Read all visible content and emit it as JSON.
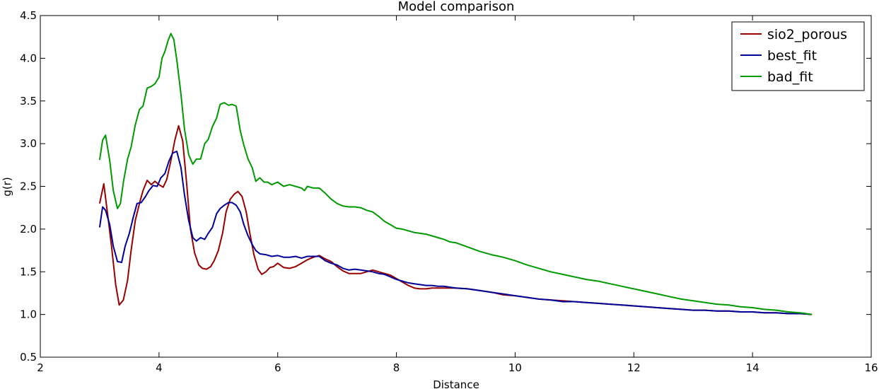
{
  "chart_data": {
    "type": "line",
    "title": "Model comparison",
    "xlabel": "Distance",
    "ylabel": "g(r)",
    "xlim": [
      2,
      16
    ],
    "ylim": [
      0.5,
      4.5
    ],
    "xticks": [
      2,
      4,
      6,
      8,
      10,
      12,
      14,
      16
    ],
    "xtick_labels": [
      "2",
      "4",
      "6",
      "8",
      "10",
      "12",
      "14",
      "16"
    ],
    "yticks": [
      0.5,
      1.0,
      1.5,
      2.0,
      2.5,
      3.0,
      3.5,
      4.0,
      4.5
    ],
    "ytick_labels": [
      "0.5",
      "1.0",
      "1.5",
      "2.0",
      "2.5",
      "3.0",
      "3.5",
      "4.0",
      "4.5"
    ],
    "grid": false,
    "legend_position": "top-right",
    "series": [
      {
        "name": "sio2_porous",
        "color": "#990000",
        "points": [
          [
            3.0,
            2.3
          ],
          [
            3.07,
            2.53
          ],
          [
            3.13,
            2.2
          ],
          [
            3.2,
            1.8
          ],
          [
            3.27,
            1.35
          ],
          [
            3.33,
            1.11
          ],
          [
            3.4,
            1.17
          ],
          [
            3.47,
            1.4
          ],
          [
            3.53,
            1.75
          ],
          [
            3.6,
            2.1
          ],
          [
            3.67,
            2.3
          ],
          [
            3.73,
            2.45
          ],
          [
            3.8,
            2.57
          ],
          [
            3.87,
            2.52
          ],
          [
            3.93,
            2.56
          ],
          [
            4.0,
            2.52
          ],
          [
            4.07,
            2.49
          ],
          [
            4.13,
            2.58
          ],
          [
            4.2,
            2.8
          ],
          [
            4.27,
            3.05
          ],
          [
            4.33,
            3.21
          ],
          [
            4.4,
            3.03
          ],
          [
            4.47,
            2.5
          ],
          [
            4.53,
            2.0
          ],
          [
            4.6,
            1.72
          ],
          [
            4.67,
            1.58
          ],
          [
            4.73,
            1.54
          ],
          [
            4.8,
            1.53
          ],
          [
            4.87,
            1.56
          ],
          [
            4.93,
            1.63
          ],
          [
            5.0,
            1.75
          ],
          [
            5.07,
            1.95
          ],
          [
            5.13,
            2.2
          ],
          [
            5.2,
            2.35
          ],
          [
            5.27,
            2.41
          ],
          [
            5.33,
            2.44
          ],
          [
            5.4,
            2.38
          ],
          [
            5.47,
            2.2
          ],
          [
            5.53,
            1.95
          ],
          [
            5.6,
            1.7
          ],
          [
            5.67,
            1.53
          ],
          [
            5.73,
            1.47
          ],
          [
            5.8,
            1.5
          ],
          [
            5.87,
            1.55
          ],
          [
            5.93,
            1.56
          ],
          [
            6.0,
            1.6
          ],
          [
            6.1,
            1.55
          ],
          [
            6.2,
            1.54
          ],
          [
            6.3,
            1.56
          ],
          [
            6.4,
            1.6
          ],
          [
            6.5,
            1.64
          ],
          [
            6.6,
            1.67
          ],
          [
            6.7,
            1.69
          ],
          [
            6.8,
            1.65
          ],
          [
            6.9,
            1.62
          ],
          [
            7.0,
            1.56
          ],
          [
            7.1,
            1.51
          ],
          [
            7.2,
            1.48
          ],
          [
            7.3,
            1.48
          ],
          [
            7.4,
            1.48
          ],
          [
            7.5,
            1.5
          ],
          [
            7.6,
            1.52
          ],
          [
            7.7,
            1.5
          ],
          [
            7.8,
            1.48
          ],
          [
            7.9,
            1.46
          ],
          [
            8.0,
            1.42
          ],
          [
            8.1,
            1.38
          ],
          [
            8.2,
            1.34
          ],
          [
            8.3,
            1.31
          ],
          [
            8.4,
            1.3
          ],
          [
            8.5,
            1.3
          ],
          [
            8.6,
            1.31
          ],
          [
            8.7,
            1.31
          ],
          [
            8.8,
            1.31
          ],
          [
            9.0,
            1.31
          ],
          [
            9.2,
            1.3
          ],
          [
            9.4,
            1.28
          ],
          [
            9.6,
            1.26
          ],
          [
            9.8,
            1.23
          ],
          [
            10.0,
            1.22
          ],
          [
            10.2,
            1.2
          ],
          [
            10.4,
            1.18
          ],
          [
            10.6,
            1.17
          ],
          [
            10.8,
            1.16
          ],
          [
            11.0,
            1.15
          ],
          [
            11.2,
            1.14
          ],
          [
            11.4,
            1.13
          ],
          [
            11.6,
            1.12
          ],
          [
            11.8,
            1.11
          ],
          [
            12.0,
            1.1
          ],
          [
            12.2,
            1.09
          ],
          [
            12.4,
            1.08
          ],
          [
            12.6,
            1.07
          ],
          [
            12.8,
            1.06
          ],
          [
            13.0,
            1.05
          ],
          [
            13.2,
            1.05
          ],
          [
            13.4,
            1.04
          ],
          [
            13.6,
            1.04
          ],
          [
            13.8,
            1.03
          ],
          [
            14.0,
            1.03
          ],
          [
            14.2,
            1.02
          ],
          [
            14.4,
            1.02
          ],
          [
            14.6,
            1.01
          ],
          [
            14.8,
            1.01
          ],
          [
            15.0,
            1.0
          ]
        ]
      },
      {
        "name": "best_fit",
        "color": "#000099",
        "points": [
          [
            3.0,
            2.02
          ],
          [
            3.05,
            2.26
          ],
          [
            3.1,
            2.22
          ],
          [
            3.17,
            2.05
          ],
          [
            3.23,
            1.8
          ],
          [
            3.3,
            1.62
          ],
          [
            3.37,
            1.61
          ],
          [
            3.43,
            1.8
          ],
          [
            3.5,
            1.95
          ],
          [
            3.57,
            2.15
          ],
          [
            3.63,
            2.3
          ],
          [
            3.7,
            2.31
          ],
          [
            3.77,
            2.38
          ],
          [
            3.83,
            2.45
          ],
          [
            3.9,
            2.51
          ],
          [
            3.97,
            2.5
          ],
          [
            4.03,
            2.6
          ],
          [
            4.1,
            2.65
          ],
          [
            4.17,
            2.8
          ],
          [
            4.23,
            2.89
          ],
          [
            4.3,
            2.91
          ],
          [
            4.37,
            2.72
          ],
          [
            4.43,
            2.4
          ],
          [
            4.5,
            2.1
          ],
          [
            4.57,
            1.9
          ],
          [
            4.63,
            1.86
          ],
          [
            4.7,
            1.9
          ],
          [
            4.77,
            1.88
          ],
          [
            4.83,
            1.95
          ],
          [
            4.9,
            2.02
          ],
          [
            4.97,
            2.18
          ],
          [
            5.03,
            2.24
          ],
          [
            5.1,
            2.28
          ],
          [
            5.17,
            2.31
          ],
          [
            5.23,
            2.31
          ],
          [
            5.3,
            2.28
          ],
          [
            5.37,
            2.2
          ],
          [
            5.43,
            2.05
          ],
          [
            5.5,
            1.92
          ],
          [
            5.57,
            1.82
          ],
          [
            5.63,
            1.75
          ],
          [
            5.7,
            1.71
          ],
          [
            5.8,
            1.7
          ],
          [
            5.9,
            1.68
          ],
          [
            6.0,
            1.69
          ],
          [
            6.1,
            1.67
          ],
          [
            6.2,
            1.67
          ],
          [
            6.3,
            1.68
          ],
          [
            6.4,
            1.66
          ],
          [
            6.5,
            1.68
          ],
          [
            6.6,
            1.68
          ],
          [
            6.7,
            1.68
          ],
          [
            6.8,
            1.63
          ],
          [
            6.9,
            1.6
          ],
          [
            7.0,
            1.58
          ],
          [
            7.1,
            1.54
          ],
          [
            7.2,
            1.52
          ],
          [
            7.3,
            1.53
          ],
          [
            7.4,
            1.52
          ],
          [
            7.5,
            1.51
          ],
          [
            7.6,
            1.5
          ],
          [
            7.7,
            1.48
          ],
          [
            7.8,
            1.47
          ],
          [
            7.9,
            1.44
          ],
          [
            8.0,
            1.41
          ],
          [
            8.1,
            1.39
          ],
          [
            8.2,
            1.37
          ],
          [
            8.3,
            1.36
          ],
          [
            8.4,
            1.35
          ],
          [
            8.5,
            1.34
          ],
          [
            8.6,
            1.34
          ],
          [
            8.7,
            1.33
          ],
          [
            8.8,
            1.33
          ],
          [
            9.0,
            1.31
          ],
          [
            9.2,
            1.3
          ],
          [
            9.4,
            1.28
          ],
          [
            9.6,
            1.26
          ],
          [
            9.8,
            1.24
          ],
          [
            10.0,
            1.22
          ],
          [
            10.2,
            1.2
          ],
          [
            10.4,
            1.18
          ],
          [
            10.6,
            1.17
          ],
          [
            10.8,
            1.15
          ],
          [
            11.0,
            1.15
          ],
          [
            11.2,
            1.14
          ],
          [
            11.4,
            1.13
          ],
          [
            11.6,
            1.12
          ],
          [
            11.8,
            1.11
          ],
          [
            12.0,
            1.1
          ],
          [
            12.2,
            1.09
          ],
          [
            12.4,
            1.08
          ],
          [
            12.6,
            1.07
          ],
          [
            12.8,
            1.06
          ],
          [
            13.0,
            1.05
          ],
          [
            13.2,
            1.05
          ],
          [
            13.4,
            1.04
          ],
          [
            13.6,
            1.04
          ],
          [
            13.8,
            1.03
          ],
          [
            14.0,
            1.03
          ],
          [
            14.2,
            1.02
          ],
          [
            14.4,
            1.02
          ],
          [
            14.6,
            1.01
          ],
          [
            14.8,
            1.01
          ],
          [
            15.0,
            1.0
          ]
        ]
      },
      {
        "name": "bad_fit",
        "color": "#009900",
        "points": [
          [
            3.0,
            2.81
          ],
          [
            3.05,
            3.04
          ],
          [
            3.1,
            3.1
          ],
          [
            3.17,
            2.8
          ],
          [
            3.23,
            2.45
          ],
          [
            3.3,
            2.24
          ],
          [
            3.35,
            2.3
          ],
          [
            3.4,
            2.55
          ],
          [
            3.47,
            2.82
          ],
          [
            3.53,
            2.96
          ],
          [
            3.6,
            3.22
          ],
          [
            3.67,
            3.4
          ],
          [
            3.73,
            3.44
          ],
          [
            3.8,
            3.65
          ],
          [
            3.87,
            3.67
          ],
          [
            3.93,
            3.7
          ],
          [
            4.0,
            3.78
          ],
          [
            4.05,
            4.0
          ],
          [
            4.1,
            4.08
          ],
          [
            4.15,
            4.2
          ],
          [
            4.2,
            4.29
          ],
          [
            4.25,
            4.22
          ],
          [
            4.3,
            3.98
          ],
          [
            4.37,
            3.58
          ],
          [
            4.43,
            3.17
          ],
          [
            4.5,
            2.87
          ],
          [
            4.57,
            2.76
          ],
          [
            4.63,
            2.82
          ],
          [
            4.7,
            2.82
          ],
          [
            4.77,
            3.0
          ],
          [
            4.83,
            3.05
          ],
          [
            4.9,
            3.2
          ],
          [
            4.97,
            3.3
          ],
          [
            5.03,
            3.46
          ],
          [
            5.1,
            3.48
          ],
          [
            5.17,
            3.45
          ],
          [
            5.23,
            3.46
          ],
          [
            5.3,
            3.44
          ],
          [
            5.37,
            3.15
          ],
          [
            5.43,
            2.98
          ],
          [
            5.5,
            2.82
          ],
          [
            5.57,
            2.72
          ],
          [
            5.63,
            2.56
          ],
          [
            5.7,
            2.6
          ],
          [
            5.77,
            2.55
          ],
          [
            5.83,
            2.55
          ],
          [
            5.9,
            2.52
          ],
          [
            6.0,
            2.55
          ],
          [
            6.1,
            2.5
          ],
          [
            6.2,
            2.52
          ],
          [
            6.3,
            2.5
          ],
          [
            6.4,
            2.48
          ],
          [
            6.45,
            2.45
          ],
          [
            6.5,
            2.5
          ],
          [
            6.6,
            2.48
          ],
          [
            6.7,
            2.48
          ],
          [
            6.8,
            2.42
          ],
          [
            6.9,
            2.35
          ],
          [
            7.0,
            2.3
          ],
          [
            7.1,
            2.27
          ],
          [
            7.2,
            2.26
          ],
          [
            7.3,
            2.26
          ],
          [
            7.4,
            2.25
          ],
          [
            7.5,
            2.22
          ],
          [
            7.6,
            2.2
          ],
          [
            7.7,
            2.15
          ],
          [
            7.8,
            2.09
          ],
          [
            7.9,
            2.05
          ],
          [
            8.0,
            2.01
          ],
          [
            8.1,
            2.0
          ],
          [
            8.2,
            1.98
          ],
          [
            8.3,
            1.96
          ],
          [
            8.4,
            1.95
          ],
          [
            8.5,
            1.94
          ],
          [
            8.6,
            1.92
          ],
          [
            8.7,
            1.9
          ],
          [
            8.8,
            1.88
          ],
          [
            8.9,
            1.85
          ],
          [
            9.0,
            1.84
          ],
          [
            9.2,
            1.79
          ],
          [
            9.4,
            1.74
          ],
          [
            9.6,
            1.7
          ],
          [
            9.8,
            1.67
          ],
          [
            10.0,
            1.63
          ],
          [
            10.2,
            1.58
          ],
          [
            10.4,
            1.54
          ],
          [
            10.6,
            1.5
          ],
          [
            10.8,
            1.47
          ],
          [
            11.0,
            1.44
          ],
          [
            11.2,
            1.41
          ],
          [
            11.4,
            1.39
          ],
          [
            11.6,
            1.36
          ],
          [
            11.8,
            1.33
          ],
          [
            12.0,
            1.3
          ],
          [
            12.2,
            1.27
          ],
          [
            12.4,
            1.24
          ],
          [
            12.6,
            1.21
          ],
          [
            12.8,
            1.18
          ],
          [
            13.0,
            1.16
          ],
          [
            13.2,
            1.14
          ],
          [
            13.4,
            1.12
          ],
          [
            13.6,
            1.11
          ],
          [
            13.8,
            1.09
          ],
          [
            14.0,
            1.08
          ],
          [
            14.2,
            1.06
          ],
          [
            14.4,
            1.05
          ],
          [
            14.6,
            1.03
          ],
          [
            14.8,
            1.02
          ],
          [
            15.0,
            1.0
          ]
        ]
      }
    ]
  }
}
